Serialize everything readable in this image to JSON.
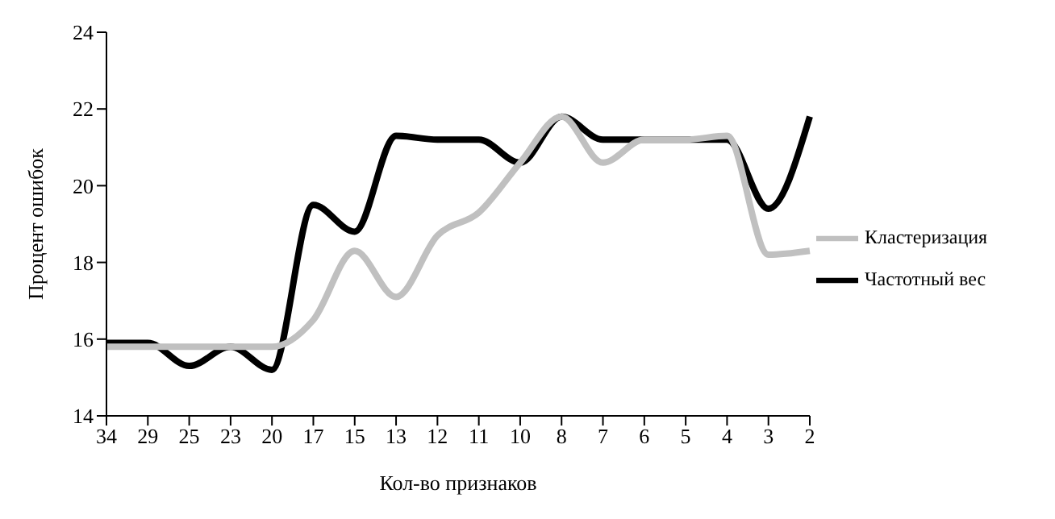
{
  "chart_data": {
    "type": "line",
    "xlabel": "Кол-во признаков",
    "ylabel": "Процент ошибок",
    "categories": [
      "34",
      "29",
      "25",
      "23",
      "20",
      "17",
      "15",
      "13",
      "12",
      "11",
      "10",
      "8",
      "7",
      "6",
      "5",
      "4",
      "3",
      "2"
    ],
    "series": [
      {
        "name": "Частотный вес",
        "color": "#000000",
        "values": [
          15.9,
          15.9,
          15.3,
          15.8,
          15.2,
          19.5,
          18.8,
          21.3,
          21.2,
          21.2,
          20.6,
          21.8,
          21.2,
          21.2,
          21.2,
          21.2,
          19.4,
          21.8
        ]
      },
      {
        "name": "Кластеризация",
        "color": "#c0c0c0",
        "values": [
          15.8,
          15.8,
          15.8,
          15.8,
          15.8,
          16.5,
          18.3,
          17.1,
          18.7,
          19.3,
          20.6,
          21.8,
          20.6,
          21.2,
          21.2,
          21.3,
          18.2,
          18.3
        ]
      }
    ],
    "ylim": [
      14,
      24
    ],
    "yticks": [
      14,
      16,
      18,
      20,
      22,
      24
    ],
    "legend": "right",
    "grid": false,
    "marker": "none",
    "line_style": "solid"
  }
}
